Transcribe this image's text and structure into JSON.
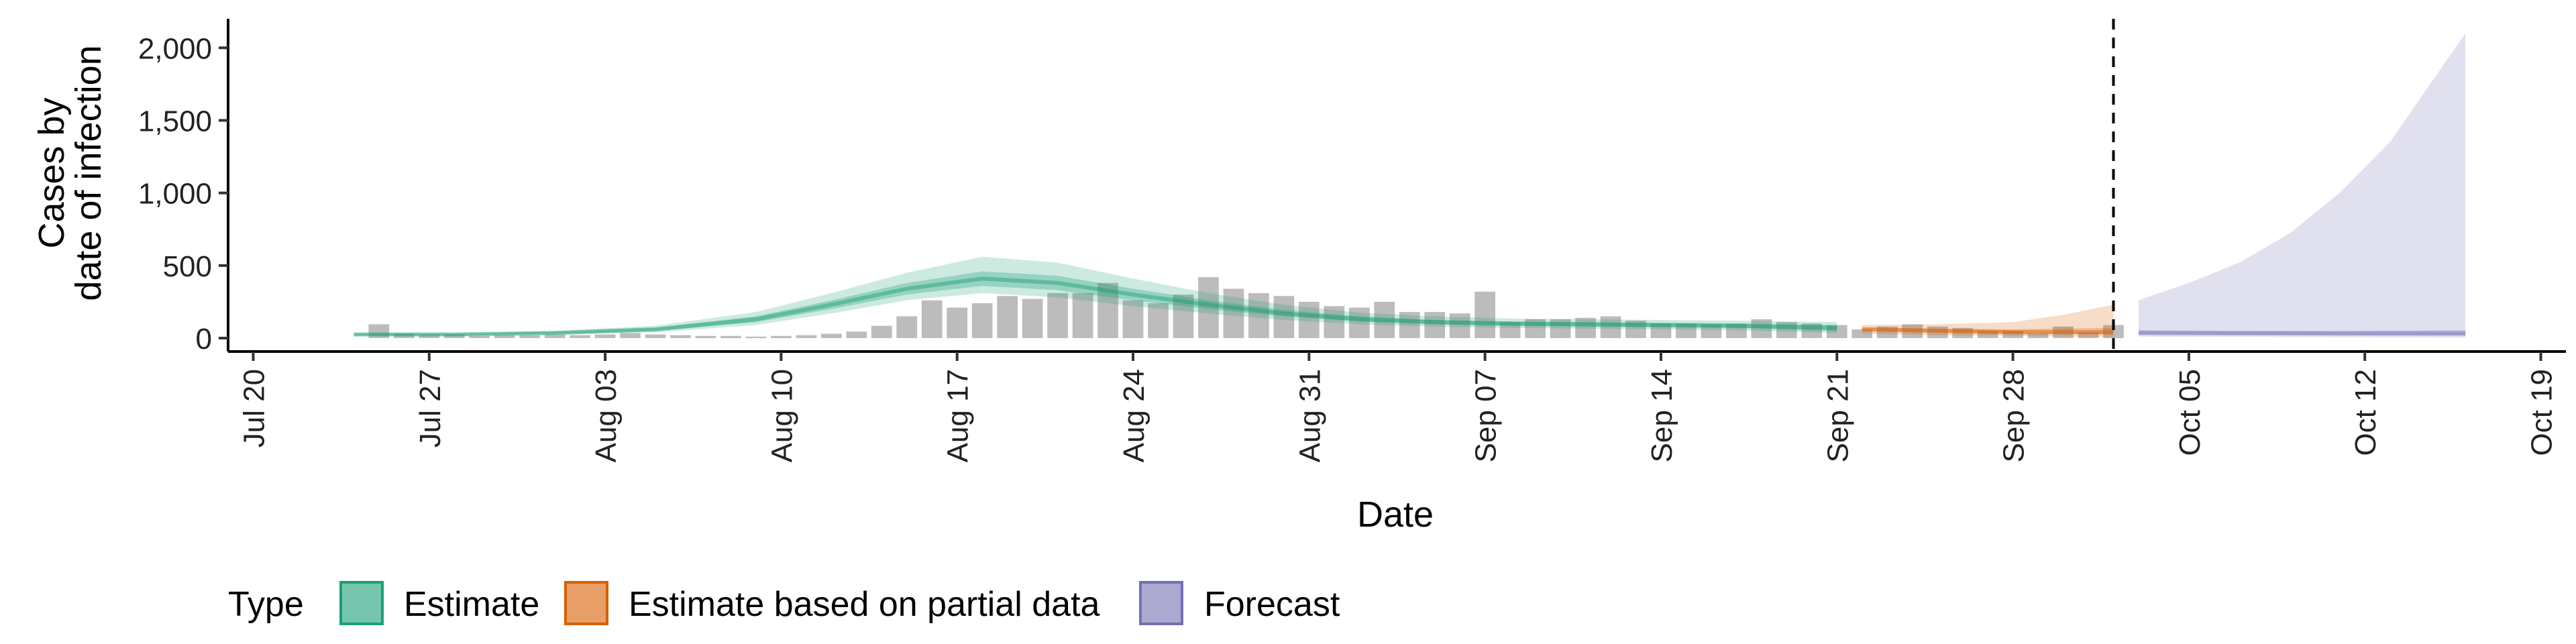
{
  "chart_data": {
    "type": "area",
    "xlabel": "Date",
    "ylabel_lines": [
      "Cases by",
      "date of infection"
    ],
    "ylim": [
      0,
      2200
    ],
    "y_ticks": [
      0,
      500,
      1000,
      1500,
      2000
    ],
    "y_tick_labels": [
      "0",
      "500",
      "1,000",
      "1,500",
      "2,000"
    ],
    "x_range": [
      "2020-07-19",
      "2020-10-20"
    ],
    "x_ticks": [
      "2020-07-20",
      "2020-07-27",
      "2020-08-03",
      "2020-08-10",
      "2020-08-17",
      "2020-08-24",
      "2020-08-31",
      "2020-09-07",
      "2020-09-14",
      "2020-09-21",
      "2020-09-28",
      "2020-10-05",
      "2020-10-12",
      "2020-10-19"
    ],
    "x_tick_labels": [
      "Jul 20",
      "Jul 27",
      "Aug 03",
      "Aug 10",
      "Aug 17",
      "Aug 24",
      "Aug 31",
      "Sep 07",
      "Sep 14",
      "Sep 21",
      "Sep 28",
      "Oct 05",
      "Oct 12",
      "Oct 19"
    ],
    "forecast_line_date": "2020-10-02",
    "observed_cases": {
      "dates": [
        "2020-07-25",
        "2020-07-26",
        "2020-07-27",
        "2020-07-28",
        "2020-07-29",
        "2020-07-30",
        "2020-07-31",
        "2020-08-01",
        "2020-08-02",
        "2020-08-03",
        "2020-08-04",
        "2020-08-05",
        "2020-08-06",
        "2020-08-07",
        "2020-08-08",
        "2020-08-09",
        "2020-08-10",
        "2020-08-11",
        "2020-08-12",
        "2020-08-13",
        "2020-08-14",
        "2020-08-15",
        "2020-08-16",
        "2020-08-17",
        "2020-08-18",
        "2020-08-19",
        "2020-08-20",
        "2020-08-21",
        "2020-08-22",
        "2020-08-23",
        "2020-08-24",
        "2020-08-25",
        "2020-08-26",
        "2020-08-27",
        "2020-08-28",
        "2020-08-29",
        "2020-08-30",
        "2020-08-31",
        "2020-09-01",
        "2020-09-02",
        "2020-09-03",
        "2020-09-04",
        "2020-09-05",
        "2020-09-06",
        "2020-09-07",
        "2020-09-08",
        "2020-09-09",
        "2020-09-10",
        "2020-09-11",
        "2020-09-12",
        "2020-09-13",
        "2020-09-14",
        "2020-09-15",
        "2020-09-16",
        "2020-09-17",
        "2020-09-18",
        "2020-09-19",
        "2020-09-20",
        "2020-09-21",
        "2020-09-22",
        "2020-09-23",
        "2020-09-24",
        "2020-09-25",
        "2020-09-26",
        "2020-09-27",
        "2020-09-28",
        "2020-09-29",
        "2020-09-30",
        "2020-10-01",
        "2020-10-02"
      ],
      "values": [
        95,
        30,
        20,
        25,
        15,
        20,
        20,
        25,
        20,
        25,
        35,
        25,
        20,
        15,
        15,
        10,
        15,
        20,
        30,
        45,
        85,
        150,
        260,
        210,
        240,
        290,
        270,
        310,
        310,
        380,
        260,
        240,
        300,
        420,
        340,
        310,
        290,
        250,
        220,
        210,
        250,
        180,
        180,
        170,
        320,
        110,
        130,
        130,
        140,
        150,
        120,
        100,
        100,
        95,
        100,
        130,
        110,
        100,
        90,
        60,
        80,
        95,
        80,
        70,
        50,
        50,
        30,
        80,
        40,
        90
      ]
    },
    "series": [
      {
        "name": "Estimate",
        "color": "#1b9e77",
        "dates": [
          "2020-07-24",
          "2020-07-28",
          "2020-08-01",
          "2020-08-05",
          "2020-08-09",
          "2020-08-12",
          "2020-08-15",
          "2020-08-18",
          "2020-08-21",
          "2020-08-24",
          "2020-08-27",
          "2020-08-30",
          "2020-09-02",
          "2020-09-05",
          "2020-09-08",
          "2020-09-11",
          "2020-09-14",
          "2020-09-17",
          "2020-09-21"
        ],
        "median": [
          25,
          25,
          35,
          60,
          130,
          230,
          340,
          410,
          380,
          300,
          230,
          170,
          130,
          110,
          100,
          95,
          90,
          85,
          70
        ],
        "inner_low": [
          20,
          20,
          30,
          50,
          110,
          200,
          300,
          360,
          330,
          260,
          200,
          150,
          115,
          95,
          85,
          80,
          75,
          70,
          50
        ],
        "inner_high": [
          30,
          30,
          42,
          70,
          150,
          260,
          380,
          460,
          430,
          340,
          260,
          195,
          150,
          125,
          115,
          110,
          105,
          100,
          90
        ],
        "outer_low": [
          15,
          15,
          25,
          40,
          90,
          170,
          260,
          310,
          280,
          220,
          170,
          125,
          95,
          80,
          70,
          65,
          60,
          55,
          35
        ],
        "outer_high": [
          35,
          35,
          50,
          85,
          180,
          310,
          450,
          560,
          520,
          410,
          310,
          230,
          175,
          150,
          135,
          130,
          125,
          120,
          110
        ]
      },
      {
        "name": "Estimate based on partial data",
        "color": "#d95f02",
        "dates": [
          "2020-09-22",
          "2020-09-25",
          "2020-09-28",
          "2020-09-30",
          "2020-10-02"
        ],
        "median": [
          60,
          50,
          40,
          40,
          40
        ],
        "inner_low": [
          50,
          40,
          30,
          28,
          25
        ],
        "inner_high": [
          75,
          65,
          60,
          65,
          70
        ],
        "outer_low": [
          30,
          20,
          15,
          10,
          5
        ],
        "outer_high": [
          90,
          95,
          110,
          160,
          230
        ]
      },
      {
        "name": "Forecast",
        "color": "#7570b3",
        "dates": [
          "2020-10-03",
          "2020-10-05",
          "2020-10-07",
          "2020-10-09",
          "2020-10-11",
          "2020-10-13",
          "2020-10-15",
          "2020-10-16"
        ],
        "median": [
          35,
          34,
          33,
          33,
          32,
          32,
          31,
          31
        ],
        "inner_low": [
          25,
          24,
          23,
          22,
          21,
          20,
          19,
          18
        ],
        "inner_high": [
          55,
          52,
          50,
          50,
          50,
          52,
          54,
          55
        ],
        "outer_low": [
          10,
          9,
          8,
          7,
          6,
          5,
          4,
          3
        ],
        "outer_high": [
          260,
          380,
          520,
          720,
          1000,
          1350,
          1850,
          2100
        ]
      }
    ],
    "legend": {
      "title": "Type",
      "placement": "bottom",
      "items": [
        "Estimate",
        "Estimate based on partial data",
        "Forecast"
      ]
    }
  }
}
